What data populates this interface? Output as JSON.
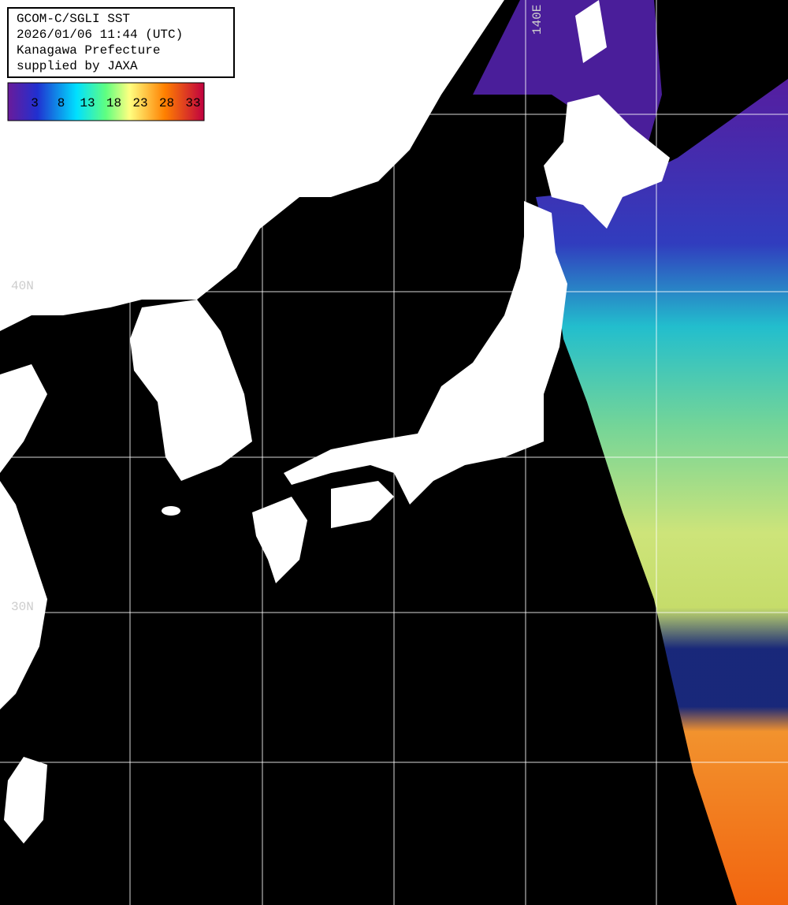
{
  "label_box": {
    "lines": [
      "GCOM-C/SGLI SST",
      "2026/01/06 11:44 (UTC)",
      "Kanagawa Prefecture",
      "supplied by JAXA"
    ]
  },
  "colorbar": {
    "labels": [
      3,
      8,
      13,
      18,
      23,
      28,
      33
    ]
  },
  "grid_labels": {
    "lat": [
      "40N",
      "30N"
    ],
    "lon": [
      "140E"
    ]
  }
}
